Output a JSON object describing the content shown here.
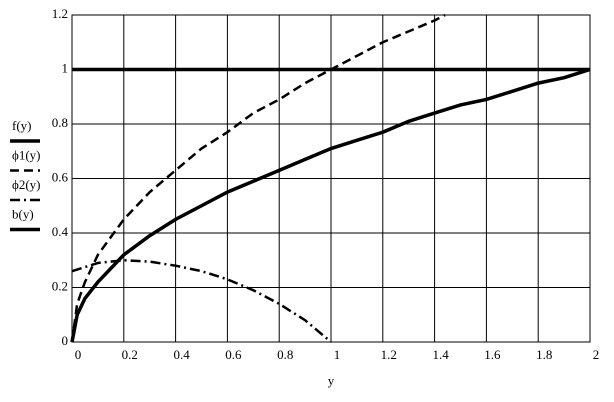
{
  "chart_data": {
    "type": "line",
    "x_label": "y",
    "xlim": [
      0,
      2
    ],
    "ylim": [
      0,
      1.2
    ],
    "xticks": [
      0,
      0.2,
      0.4,
      0.6,
      0.8,
      1,
      1.2,
      1.4,
      1.6,
      1.8,
      2
    ],
    "yticks": [
      0,
      0.2,
      0.4,
      0.6,
      0.8,
      1,
      1.2
    ],
    "grid": true,
    "series": [
      {
        "name": "f(y)",
        "color": "#000000",
        "dash": "solid",
        "x": [
          0,
          0.02,
          0.05,
          0.1,
          0.2,
          0.3,
          0.4,
          0.5,
          0.6,
          0.7,
          0.8,
          0.9,
          1.0,
          1.1,
          1.2,
          1.3,
          1.4,
          1.5,
          1.6,
          1.7,
          1.8,
          1.9,
          2.0
        ],
        "values": [
          0,
          0.1,
          0.16,
          0.22,
          0.32,
          0.39,
          0.45,
          0.5,
          0.55,
          0.59,
          0.63,
          0.67,
          0.71,
          0.74,
          0.77,
          0.81,
          0.84,
          0.87,
          0.89,
          0.92,
          0.95,
          0.97,
          1.0
        ]
      },
      {
        "name": "ϕ1(y)",
        "color": "#000000",
        "dash": "dashed",
        "x": [
          0,
          0.02,
          0.05,
          0.1,
          0.2,
          0.3,
          0.4,
          0.5,
          0.6,
          0.7,
          0.8,
          0.9,
          1.0,
          1.1,
          1.2,
          1.3,
          1.4,
          1.44
        ],
        "values": [
          0,
          0.14,
          0.22,
          0.32,
          0.45,
          0.55,
          0.63,
          0.71,
          0.77,
          0.84,
          0.89,
          0.95,
          1.0,
          1.05,
          1.1,
          1.14,
          1.18,
          1.2
        ]
      },
      {
        "name": "ϕ2(y)",
        "color": "#000000",
        "dash": "dashdot",
        "x": [
          0,
          0.1,
          0.2,
          0.3,
          0.4,
          0.5,
          0.6,
          0.7,
          0.8,
          0.9,
          1.0
        ],
        "values": [
          0.26,
          0.29,
          0.3,
          0.295,
          0.28,
          0.26,
          0.23,
          0.19,
          0.14,
          0.08,
          0
        ]
      },
      {
        "name": "b(y)",
        "color": "#000000",
        "dash": "solid",
        "x": [
          0,
          2
        ],
        "values": [
          1,
          1
        ]
      }
    ]
  }
}
